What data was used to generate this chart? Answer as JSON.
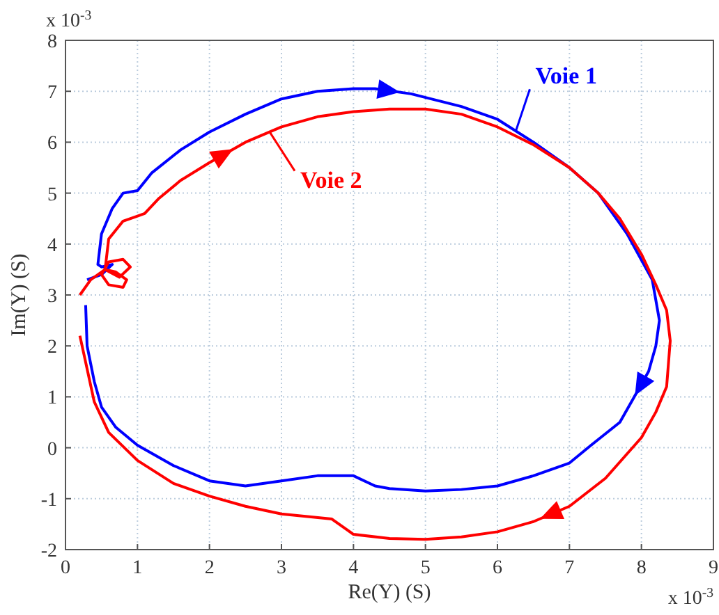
{
  "chart_data": {
    "type": "line",
    "xlabel": "Re(Y) (S)",
    "ylabel": "Im(Y) (S)",
    "xlim": [
      0,
      9
    ],
    "xticks": [
      0,
      1,
      2,
      3,
      4,
      5,
      6,
      7,
      8,
      9
    ],
    "ylim": [
      -2,
      8
    ],
    "yticks": [
      -2,
      -1,
      0,
      1,
      2,
      3,
      4,
      5,
      6,
      7,
      8
    ],
    "grid": true,
    "legend": "top left",
    "marker": "none",
    "line_style": "solid",
    "annotations": [
      "x 10$^{-3}$",
      "x 10$^{-3}$"
    ],
    "series": [
      {
        "name": "Voie 1",
        "color": "#0000ff",
        "x": [
          0.3,
          0.5,
          0.65,
          0.5,
          0.45,
          0.5,
          0.65,
          0.8,
          1.0,
          1.2,
          1.6,
          2.0,
          2.5,
          3.0,
          3.5,
          4.0,
          4.3,
          4.8,
          5.5,
          6.0,
          6.5,
          7.0,
          7.4,
          7.8,
          8.15,
          8.25,
          8.2,
          8.1,
          7.9,
          7.7,
          7.3,
          7.0,
          6.5,
          6.0,
          5.5,
          5.0,
          4.5,
          4.3,
          4.0,
          3.5,
          3.0,
          2.5,
          2.0,
          1.5,
          1.0,
          0.7,
          0.5,
          0.4,
          0.3,
          0.28
        ],
        "values": [
          3.3,
          3.4,
          3.6,
          3.55,
          3.6,
          4.2,
          4.7,
          5.0,
          5.05,
          5.4,
          5.85,
          6.2,
          6.55,
          6.85,
          7.0,
          7.05,
          7.05,
          6.95,
          6.7,
          6.45,
          6.0,
          5.5,
          5.0,
          4.2,
          3.3,
          2.5,
          2.0,
          1.5,
          1.0,
          0.5,
          0.05,
          -0.3,
          -0.55,
          -0.75,
          -0.82,
          -0.85,
          -0.8,
          -0.75,
          -0.55,
          -0.55,
          -0.65,
          -0.75,
          -0.65,
          -0.35,
          0.05,
          0.4,
          0.8,
          1.3,
          2.0,
          2.8
        ]
      },
      {
        "name": "Voie 2",
        "color": "#ff0000",
        "x": [
          0.2,
          0.35,
          0.55,
          0.7,
          0.85,
          0.8,
          0.6,
          0.5,
          0.6,
          0.8,
          0.9,
          0.75,
          0.55,
          0.6,
          0.8,
          1.0,
          1.1,
          1.3,
          1.6,
          2.0,
          2.5,
          3.0,
          3.5,
          4.0,
          4.5,
          5.0,
          5.5,
          6.0,
          6.5,
          7.0,
          7.4,
          7.7,
          8.0,
          8.2,
          8.35,
          8.4,
          8.35,
          8.2,
          8.0,
          7.5,
          7.0,
          6.5,
          6.0,
          5.5,
          5.0,
          4.5,
          4.0,
          3.7,
          3.0,
          2.5,
          2.0,
          1.5,
          1.0,
          0.6,
          0.4,
          0.2
        ],
        "values": [
          3.0,
          3.3,
          3.5,
          3.45,
          3.3,
          3.15,
          3.2,
          3.4,
          3.65,
          3.7,
          3.55,
          3.35,
          3.5,
          4.1,
          4.45,
          4.55,
          4.6,
          4.9,
          5.25,
          5.6,
          6.0,
          6.3,
          6.5,
          6.6,
          6.65,
          6.65,
          6.55,
          6.3,
          5.95,
          5.5,
          5.0,
          4.5,
          3.8,
          3.2,
          2.7,
          2.1,
          1.2,
          0.7,
          0.2,
          -0.6,
          -1.15,
          -1.45,
          -1.65,
          -1.75,
          -1.8,
          -1.78,
          -1.7,
          -1.4,
          -1.3,
          -1.15,
          -0.95,
          -0.7,
          -0.25,
          0.3,
          0.9,
          2.2
        ]
      }
    ]
  }
}
